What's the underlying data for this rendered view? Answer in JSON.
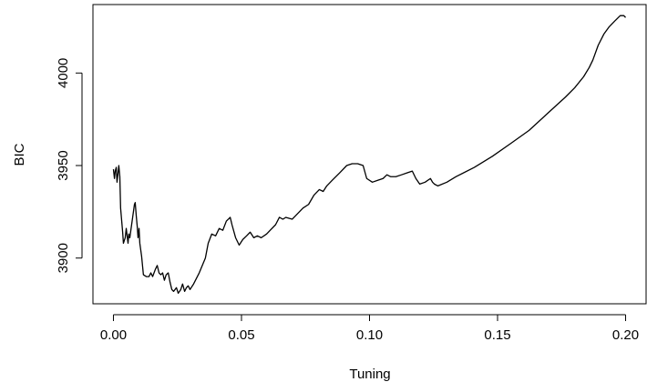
{
  "chart_data": {
    "type": "line",
    "xlabel": "Tuning",
    "ylabel": "BIC",
    "color": "#000000",
    "x": [
      0.0,
      0.0004,
      0.0007,
      0.0011,
      0.0014,
      0.0018,
      0.0021,
      0.0025,
      0.0028,
      0.0036,
      0.0039,
      0.0046,
      0.005,
      0.0057,
      0.006,
      0.0064,
      0.0071,
      0.0075,
      0.0082,
      0.0085,
      0.0089,
      0.0093,
      0.0096,
      0.01,
      0.0103,
      0.011,
      0.0117,
      0.0128,
      0.0139,
      0.0146,
      0.0153,
      0.0164,
      0.0171,
      0.0178,
      0.0185,
      0.0192,
      0.0199,
      0.0206,
      0.0214,
      0.0221,
      0.0228,
      0.0235,
      0.0246,
      0.0253,
      0.0263,
      0.027,
      0.0278,
      0.0285,
      0.0292,
      0.0299,
      0.0313,
      0.0335,
      0.0359,
      0.037,
      0.0384,
      0.0399,
      0.0413,
      0.0427,
      0.0441,
      0.0456,
      0.0463,
      0.0477,
      0.0491,
      0.0505,
      0.052,
      0.0534,
      0.0548,
      0.0562,
      0.0577,
      0.0598,
      0.0612,
      0.0633,
      0.0648,
      0.0662,
      0.0673,
      0.0698,
      0.0719,
      0.074,
      0.0762,
      0.0783,
      0.0804,
      0.0819,
      0.0833,
      0.0854,
      0.0883,
      0.0911,
      0.0932,
      0.0954,
      0.0975,
      0.0989,
      0.1011,
      0.1032,
      0.1053,
      0.1068,
      0.1082,
      0.1103,
      0.1125,
      0.1146,
      0.1167,
      0.1181,
      0.1196,
      0.1217,
      0.1238,
      0.1246,
      0.1253,
      0.1267,
      0.1302,
      0.1338,
      0.1409,
      0.148,
      0.1552,
      0.1623,
      0.1694,
      0.1765,
      0.1801,
      0.1836,
      0.1858,
      0.1872,
      0.1893,
      0.1915,
      0.1936,
      0.1957,
      0.1979,
      0.1993,
      0.2
    ],
    "values": [
      3948,
      3943,
      3947,
      3949,
      3941,
      3946,
      3950,
      3944,
      3927,
      3914,
      3908,
      3911,
      3916,
      3908,
      3913,
      3911,
      3918,
      3922,
      3929,
      3930,
      3923,
      3917,
      3911,
      3916,
      3908,
      3901,
      3891,
      3890,
      3890,
      3892,
      3890,
      3894,
      3896,
      3892,
      3891,
      3892,
      3888,
      3891,
      3892,
      3887,
      3883,
      3882,
      3884,
      3881,
      3883,
      3886,
      3882,
      3884,
      3885,
      3883,
      3886,
      3892,
      3900,
      3908,
      3913,
      3912,
      3916,
      3915,
      3920,
      3922,
      3918,
      3911,
      3907,
      3910,
      3912,
      3914,
      3911,
      3912,
      3911,
      3913,
      3915,
      3918,
      3922,
      3921,
      3922,
      3921,
      3924,
      3927,
      3929,
      3934,
      3937,
      3936,
      3939,
      3942,
      3946,
      3950,
      3951,
      3951,
      3950,
      3943,
      3941,
      3942,
      3943,
      3945,
      3944,
      3944,
      3945,
      3946,
      3947,
      3943,
      3940,
      3941,
      3943,
      3941,
      3940,
      3939,
      3941,
      3944,
      3949,
      3955,
      3962,
      3969,
      3978,
      3987,
      3992,
      3998,
      4003,
      4007,
      4015,
      4021,
      4025,
      4028,
      4031,
      4031,
      4030
    ],
    "xlim": [
      -0.008,
      0.208
    ],
    "ylim": [
      3875.3,
      4037
    ],
    "xticks": [
      {
        "value": 0,
        "label": "0.00"
      },
      {
        "value": 0.05,
        "label": "0.05"
      },
      {
        "value": 0.1,
        "label": "0.10"
      },
      {
        "value": 0.15,
        "label": "0.15"
      },
      {
        "value": 0.2,
        "label": "0.20"
      }
    ],
    "yticks": [
      3900,
      3950,
      4000
    ]
  }
}
